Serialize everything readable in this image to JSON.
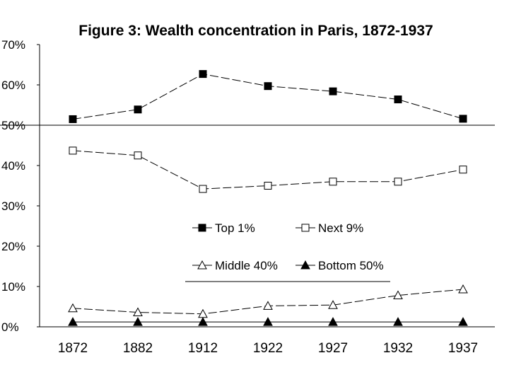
{
  "chart_data": {
    "type": "line",
    "title": "Figure 3: Wealth concentration in Paris, 1872-1937",
    "categories": [
      "1872",
      "1882",
      "1912",
      "1922",
      "1927",
      "1932",
      "1937"
    ],
    "y_ticks": [
      "0%",
      "10%",
      "20%",
      "30%",
      "40%",
      "50%",
      "60%",
      "70%"
    ],
    "ylim": [
      0,
      70
    ],
    "reference_line": 50,
    "legend_placement": "center",
    "series": [
      {
        "name": "Top 1%",
        "marker": "filled-square",
        "dash": "long-dash",
        "values": [
          51.5,
          53.9,
          62.7,
          59.7,
          58.4,
          56.4,
          51.6
        ]
      },
      {
        "name": "Next 9%",
        "marker": "open-square",
        "dash": "long-dash",
        "values": [
          43.7,
          42.5,
          34.2,
          35.0,
          36.0,
          36.0,
          39.0
        ]
      },
      {
        "name": "Middle 40%",
        "marker": "open-triangle",
        "dash": "long-dash",
        "values": [
          4.6,
          3.6,
          3.2,
          5.2,
          5.4,
          7.8,
          9.3
        ]
      },
      {
        "name": "Bottom 50%",
        "marker": "filled-triangle",
        "dash": "solid",
        "values": [
          1.2,
          1.2,
          1.2,
          1.2,
          1.2,
          1.2,
          1.2
        ]
      }
    ]
  }
}
